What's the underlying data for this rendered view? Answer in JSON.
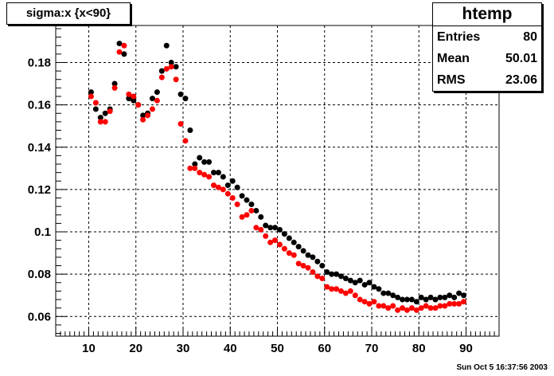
{
  "chart_data": {
    "type": "scatter",
    "title": "sigma:x {x<90}",
    "xlabel": "",
    "ylabel": "",
    "xlim": [
      3,
      97
    ],
    "ylim": [
      0.0507,
      0.1975
    ],
    "xticks": [
      10,
      20,
      30,
      40,
      50,
      60,
      70,
      80,
      90
    ],
    "yticks": [
      0.06,
      0.08,
      0.1,
      0.12,
      0.14,
      0.16,
      0.18
    ],
    "ytick_labels": [
      "0.06",
      "0.08",
      "0.1",
      "0.12",
      "0.14",
      "0.16",
      "0.18"
    ],
    "grid": true,
    "x": [
      10.5,
      11.5,
      12.5,
      13.5,
      14.5,
      15.5,
      16.5,
      17.5,
      18.5,
      19.5,
      20.5,
      21.5,
      22.5,
      23.5,
      24.5,
      25.5,
      26.5,
      27.5,
      28.5,
      29.5,
      30.5,
      31.5,
      32.5,
      33.5,
      34.5,
      35.5,
      36.5,
      37.5,
      38.5,
      39.5,
      40.5,
      41.5,
      42.5,
      43.5,
      44.5,
      45.5,
      46.5,
      47.5,
      48.5,
      49.5,
      50.5,
      51.5,
      52.5,
      53.5,
      54.5,
      55.5,
      56.5,
      57.5,
      58.5,
      59.5,
      60.5,
      61.5,
      62.5,
      63.5,
      64.5,
      65.5,
      66.5,
      67.5,
      68.5,
      69.5,
      70.5,
      71.5,
      72.5,
      73.5,
      74.5,
      75.5,
      76.5,
      77.5,
      78.5,
      79.5,
      80.5,
      81.5,
      82.5,
      83.5,
      84.5,
      85.5,
      86.5,
      87.5,
      88.5,
      89.5
    ],
    "series": [
      {
        "color": "#000000",
        "values": [
          0.166,
          0.158,
          0.154,
          0.156,
          0.158,
          0.17,
          0.189,
          0.184,
          0.163,
          0.162,
          0.16,
          0.155,
          0.156,
          0.163,
          0.166,
          0.176,
          0.188,
          0.18,
          0.178,
          0.165,
          0.163,
          0.148,
          0.132,
          0.135,
          0.133,
          0.133,
          0.128,
          0.128,
          0.126,
          0.122,
          0.124,
          0.121,
          0.117,
          0.115,
          0.113,
          0.11,
          0.107,
          0.103,
          0.102,
          0.102,
          0.101,
          0.099,
          0.097,
          0.095,
          0.093,
          0.091,
          0.089,
          0.088,
          0.086,
          0.084,
          0.081,
          0.08,
          0.08,
          0.079,
          0.078,
          0.077,
          0.076,
          0.077,
          0.075,
          0.076,
          0.074,
          0.073,
          0.071,
          0.071,
          0.07,
          0.069,
          0.068,
          0.068,
          0.068,
          0.067,
          0.069,
          0.068,
          0.069,
          0.068,
          0.069,
          0.069,
          0.07,
          0.069,
          0.071,
          0.07
        ]
      },
      {
        "color": "#ff0000",
        "values": [
          0.164,
          0.161,
          0.152,
          0.152,
          0.157,
          0.168,
          0.185,
          0.188,
          0.165,
          0.164,
          0.16,
          0.153,
          0.155,
          0.158,
          0.162,
          0.173,
          0.177,
          0.178,
          0.172,
          0.151,
          0.143,
          0.13,
          0.13,
          0.128,
          0.127,
          0.126,
          0.122,
          0.121,
          0.12,
          0.118,
          0.116,
          0.113,
          0.107,
          0.108,
          0.11,
          0.102,
          0.101,
          0.098,
          0.095,
          0.096,
          0.094,
          0.092,
          0.09,
          0.089,
          0.085,
          0.084,
          0.083,
          0.081,
          0.079,
          0.078,
          0.074,
          0.073,
          0.073,
          0.072,
          0.071,
          0.072,
          0.07,
          0.068,
          0.067,
          0.066,
          0.067,
          0.065,
          0.065,
          0.064,
          0.065,
          0.063,
          0.064,
          0.063,
          0.064,
          0.063,
          0.064,
          0.065,
          0.064,
          0.064,
          0.065,
          0.065,
          0.066,
          0.066,
          0.066,
          0.067
        ]
      }
    ]
  },
  "stats": {
    "name": "htemp",
    "rows": [
      {
        "label": "Entries",
        "value": "80"
      },
      {
        "label": "Mean",
        "value": "50.01"
      },
      {
        "label": "RMS",
        "value": "23.06"
      }
    ]
  },
  "timestamp": "Sun Oct  5 16:37:56 2003"
}
